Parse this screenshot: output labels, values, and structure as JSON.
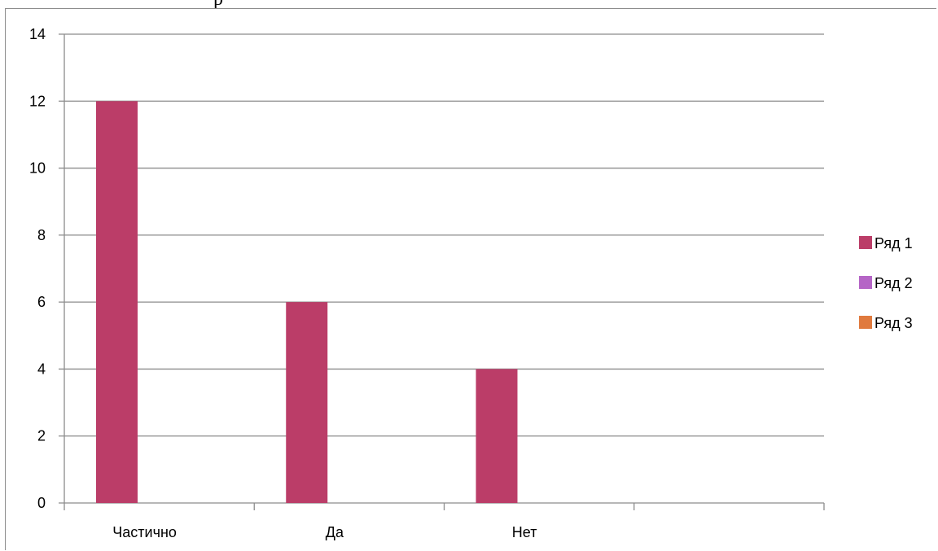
{
  "page": {
    "top_fragment": "р"
  },
  "chart_data": {
    "type": "bar",
    "categories": [
      "Частично",
      "Да",
      "Нет",
      ""
    ],
    "series": [
      {
        "name": "Ряд 1",
        "values": [
          12,
          6,
          4,
          null
        ],
        "color": "#bb3d68"
      },
      {
        "name": "Ряд 2",
        "values": [
          null,
          null,
          null,
          null
        ],
        "color": "#b565c6"
      },
      {
        "name": "Ряд 3",
        "values": [
          null,
          null,
          null,
          null
        ],
        "color": "#e07a3e"
      }
    ],
    "ylim": [
      0,
      14
    ],
    "yticks": [
      0,
      2,
      4,
      6,
      8,
      10,
      12,
      14
    ],
    "title": "",
    "xlabel": "",
    "ylabel": "",
    "grid": true,
    "legend_position": "right"
  }
}
